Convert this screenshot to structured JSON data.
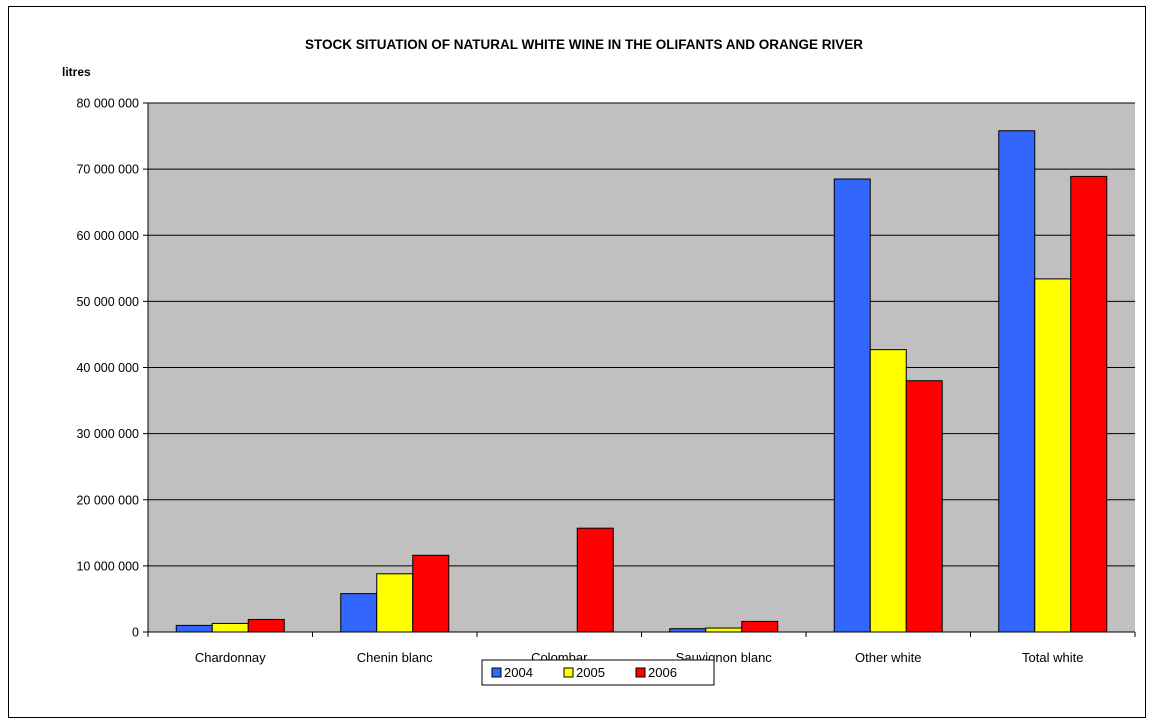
{
  "chart_data": {
    "type": "bar",
    "title": "STOCK SITUATION OF NATURAL WHITE WINE IN THE OLIFANTS AND ORANGE RIVER",
    "ylabel": "litres",
    "xlabel": "",
    "ylim": [
      0,
      80000000
    ],
    "y_ticks": [
      "0",
      "10 000 000",
      "20 000 000",
      "30 000 000",
      "40 000 000",
      "50 000 000",
      "60 000 000",
      "70 000 000",
      "80 000 000"
    ],
    "y_tick_values": [
      0,
      10000000,
      20000000,
      30000000,
      40000000,
      50000000,
      60000000,
      70000000,
      80000000
    ],
    "categories": [
      "Chardonnay",
      "Chenin blanc",
      "Colombar",
      "Sauvignon blanc",
      "Other white",
      "Total white"
    ],
    "series": [
      {
        "name": "2004",
        "color": "#3366ff",
        "values": [
          1000000,
          5800000,
          0,
          500000,
          68500000,
          75800000
        ]
      },
      {
        "name": "2005",
        "color": "#ffff00",
        "values": [
          1300000,
          8800000,
          0,
          600000,
          42700000,
          53400000
        ]
      },
      {
        "name": "2006",
        "color": "#ff0000",
        "values": [
          1900000,
          11600000,
          15700000,
          1600000,
          38000000,
          68900000
        ]
      }
    ],
    "plot_background": "#c0c0c0",
    "grid": true,
    "legend_position": "bottom"
  }
}
